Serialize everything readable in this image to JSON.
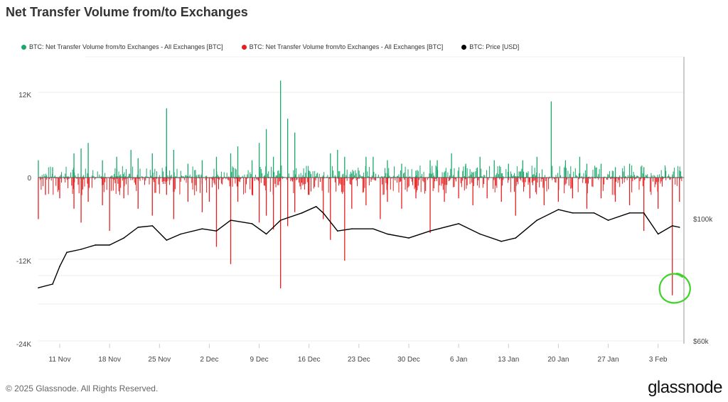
{
  "title": "Net Transfer Volume from/to Exchanges",
  "footer": "© 2025 Glassnode. All Rights Reserved.",
  "logo": "glassnode",
  "chart_data": {
    "type": "bar",
    "title": "Net Transfer Volume from/to Exchanges",
    "legend_position": "top-left",
    "grid": true,
    "legend": [
      {
        "label": "BTC: Net Transfer Volume from/to Exchanges - All Exchanges [BTC]",
        "color": "#1aa86b"
      },
      {
        "label": "BTC: Net Transfer Volume from/to Exchanges - All Exchanges [BTC]",
        "color": "#e51f1f"
      },
      {
        "label": "BTC: Price [USD]",
        "color": "#000000"
      }
    ],
    "x_ticks": [
      "11 Nov",
      "18 Nov",
      "25 Nov",
      "2 Dec",
      "9 Dec",
      "16 Dec",
      "23 Dec",
      "30 Dec",
      "6 Jan",
      "13 Jan",
      "20 Jan",
      "27 Jan",
      "3 Feb"
    ],
    "x_tick_dates": [
      "2024-11-11",
      "2024-11-18",
      "2024-11-25",
      "2024-12-02",
      "2024-12-09",
      "2024-12-16",
      "2024-12-23",
      "2024-12-30",
      "2025-01-06",
      "2025-01-13",
      "2025-01-20",
      "2025-01-27",
      "2025-02-03"
    ],
    "xlim": [
      "2024-11-08",
      "2025-02-06"
    ],
    "y_left": {
      "ticks": [
        "12K",
        "0",
        "-12K",
        "-24K"
      ],
      "tick_values": [
        12000,
        0,
        -12000,
        -24000
      ],
      "ylim": [
        -24000,
        14000
      ]
    },
    "y_right": {
      "ticks": [
        "$100k",
        "$60k"
      ],
      "tick_values": [
        100000,
        60000
      ],
      "log": false
    },
    "series": [
      {
        "color": "#1aa86b",
        "points": [
          [
            "2024-11-08",
            2500
          ],
          [
            "2024-11-10",
            1500
          ],
          [
            "2024-11-13",
            3500
          ],
          [
            "2024-11-14",
            4200
          ],
          [
            "2024-11-15",
            5000
          ],
          [
            "2024-11-17",
            2500
          ],
          [
            "2024-11-19",
            3000
          ],
          [
            "2024-11-21",
            4000
          ],
          [
            "2024-11-22",
            2800
          ],
          [
            "2024-11-24",
            3500
          ],
          [
            "2024-11-26",
            10000
          ],
          [
            "2024-11-27",
            4000
          ],
          [
            "2024-11-29",
            2000
          ],
          [
            "2024-12-01",
            2500
          ],
          [
            "2024-12-03",
            3000
          ],
          [
            "2024-12-05",
            3500
          ],
          [
            "2024-12-06",
            4500
          ],
          [
            "2024-12-08",
            2500
          ],
          [
            "2024-12-09",
            5000
          ],
          [
            "2024-12-10",
            7000
          ],
          [
            "2024-12-11",
            3000
          ],
          [
            "2024-12-12",
            14000
          ],
          [
            "2024-12-13",
            8500
          ],
          [
            "2024-12-14",
            6500
          ],
          [
            "2024-12-16",
            1000
          ],
          [
            "2024-12-19",
            3500
          ],
          [
            "2024-12-20",
            4000
          ],
          [
            "2024-12-21",
            3000
          ],
          [
            "2024-12-24",
            3000
          ],
          [
            "2024-12-25",
            3000
          ],
          [
            "2024-12-27",
            2500
          ],
          [
            "2024-12-29",
            2000
          ],
          [
            "2024-12-31",
            1000
          ],
          [
            "2025-01-02",
            2500
          ],
          [
            "2025-01-03",
            2500
          ],
          [
            "2025-01-05",
            3500
          ],
          [
            "2025-01-07",
            2000
          ],
          [
            "2025-01-09",
            3000
          ],
          [
            "2025-01-11",
            2500
          ],
          [
            "2025-01-13",
            2000
          ],
          [
            "2025-01-15",
            2500
          ],
          [
            "2025-01-17",
            3000
          ],
          [
            "2025-01-19",
            11000
          ],
          [
            "2025-01-21",
            2500
          ],
          [
            "2025-01-23",
            3000
          ],
          [
            "2025-01-24",
            2000
          ],
          [
            "2025-01-26",
            2000
          ],
          [
            "2025-01-28",
            1500
          ],
          [
            "2025-01-30",
            2000
          ],
          [
            "2025-02-01",
            1500
          ],
          [
            "2025-02-04",
            1500
          ],
          [
            "2025-02-06",
            1000
          ]
        ]
      },
      {
        "color": "#e51f1f",
        "points": [
          [
            "2024-11-08",
            -6000
          ],
          [
            "2024-11-09",
            -2500
          ],
          [
            "2024-11-11",
            -3000
          ],
          [
            "2024-11-13",
            -4500
          ],
          [
            "2024-11-14",
            -6500
          ],
          [
            "2024-11-15",
            -3500
          ],
          [
            "2024-11-17",
            -4000
          ],
          [
            "2024-11-18",
            -7700
          ],
          [
            "2024-11-20",
            -3000
          ],
          [
            "2024-11-22",
            -4500
          ],
          [
            "2024-11-24",
            -5500
          ],
          [
            "2024-11-26",
            -2500
          ],
          [
            "2024-11-27",
            -6000
          ],
          [
            "2024-11-29",
            -3500
          ],
          [
            "2024-12-01",
            -5000
          ],
          [
            "2024-12-02",
            -3500
          ],
          [
            "2024-12-03",
            -10000
          ],
          [
            "2024-12-05",
            -12500
          ],
          [
            "2024-12-06",
            -3500
          ],
          [
            "2024-12-08",
            -2500
          ],
          [
            "2024-12-09",
            -6500
          ],
          [
            "2024-12-10",
            -5500
          ],
          [
            "2024-12-11",
            -7500
          ],
          [
            "2024-12-12",
            -16000
          ],
          [
            "2024-12-13",
            -7000
          ],
          [
            "2024-12-14",
            -5000
          ],
          [
            "2024-12-16",
            -2500
          ],
          [
            "2024-12-18",
            -6000
          ],
          [
            "2024-12-19",
            -9000
          ],
          [
            "2024-12-21",
            -12000
          ],
          [
            "2024-12-22",
            -4500
          ],
          [
            "2024-12-24",
            -4000
          ],
          [
            "2024-12-26",
            -6000
          ],
          [
            "2024-12-27",
            -3500
          ],
          [
            "2024-12-29",
            -4500
          ],
          [
            "2024-12-31",
            -3000
          ],
          [
            "2025-01-02",
            -8000
          ],
          [
            "2025-01-04",
            -3500
          ],
          [
            "2025-01-06",
            -3000
          ],
          [
            "2025-01-08",
            -4000
          ],
          [
            "2025-01-10",
            -3000
          ],
          [
            "2025-01-12",
            -3500
          ],
          [
            "2025-01-14",
            -5500
          ],
          [
            "2025-01-16",
            -3000
          ],
          [
            "2025-01-18",
            -4000
          ],
          [
            "2025-01-20",
            -3500
          ],
          [
            "2025-01-22",
            -3000
          ],
          [
            "2025-01-24",
            -4500
          ],
          [
            "2025-01-26",
            -3000
          ],
          [
            "2025-01-28",
            -3500
          ],
          [
            "2025-01-30",
            -4000
          ],
          [
            "2025-02-01",
            -7700
          ],
          [
            "2025-02-03",
            -4500
          ],
          [
            "2025-02-05",
            -17000
          ],
          [
            "2025-02-06",
            -3500
          ]
        ]
      },
      {
        "name": "BTC: Price [USD]",
        "color": "#000000",
        "axis": "right",
        "points": [
          [
            "2024-11-08",
            77400
          ],
          [
            "2024-11-10",
            78600
          ],
          [
            "2024-11-11",
            84400
          ],
          [
            "2024-11-12",
            89000
          ],
          [
            "2024-11-14",
            90000
          ],
          [
            "2024-11-16",
            91400
          ],
          [
            "2024-11-18",
            91400
          ],
          [
            "2024-11-20",
            93700
          ],
          [
            "2024-11-22",
            97200
          ],
          [
            "2024-11-24",
            97700
          ],
          [
            "2024-11-26",
            93000
          ],
          [
            "2024-11-28",
            95000
          ],
          [
            "2024-12-01",
            96700
          ],
          [
            "2024-12-03",
            96000
          ],
          [
            "2024-12-05",
            99500
          ],
          [
            "2024-12-08",
            98400
          ],
          [
            "2024-12-10",
            95000
          ],
          [
            "2024-12-12",
            99500
          ],
          [
            "2024-12-15",
            101900
          ],
          [
            "2024-12-17",
            104000
          ],
          [
            "2024-12-18",
            101900
          ],
          [
            "2024-12-20",
            96000
          ],
          [
            "2024-12-22",
            96700
          ],
          [
            "2024-12-25",
            96700
          ],
          [
            "2024-12-27",
            95000
          ],
          [
            "2024-12-30",
            93700
          ],
          [
            "2025-01-02",
            96000
          ],
          [
            "2025-01-06",
            98400
          ],
          [
            "2025-01-09",
            95000
          ],
          [
            "2025-01-12",
            92600
          ],
          [
            "2025-01-14",
            93700
          ],
          [
            "2025-01-17",
            99500
          ],
          [
            "2025-01-20",
            103000
          ],
          [
            "2025-01-22",
            101900
          ],
          [
            "2025-01-25",
            101900
          ],
          [
            "2025-01-27",
            99500
          ],
          [
            "2025-01-30",
            101900
          ],
          [
            "2025-02-01",
            101900
          ],
          [
            "2025-02-03",
            95000
          ],
          [
            "2025-02-05",
            97700
          ],
          [
            "2025-02-06",
            97200
          ]
        ]
      }
    ]
  }
}
